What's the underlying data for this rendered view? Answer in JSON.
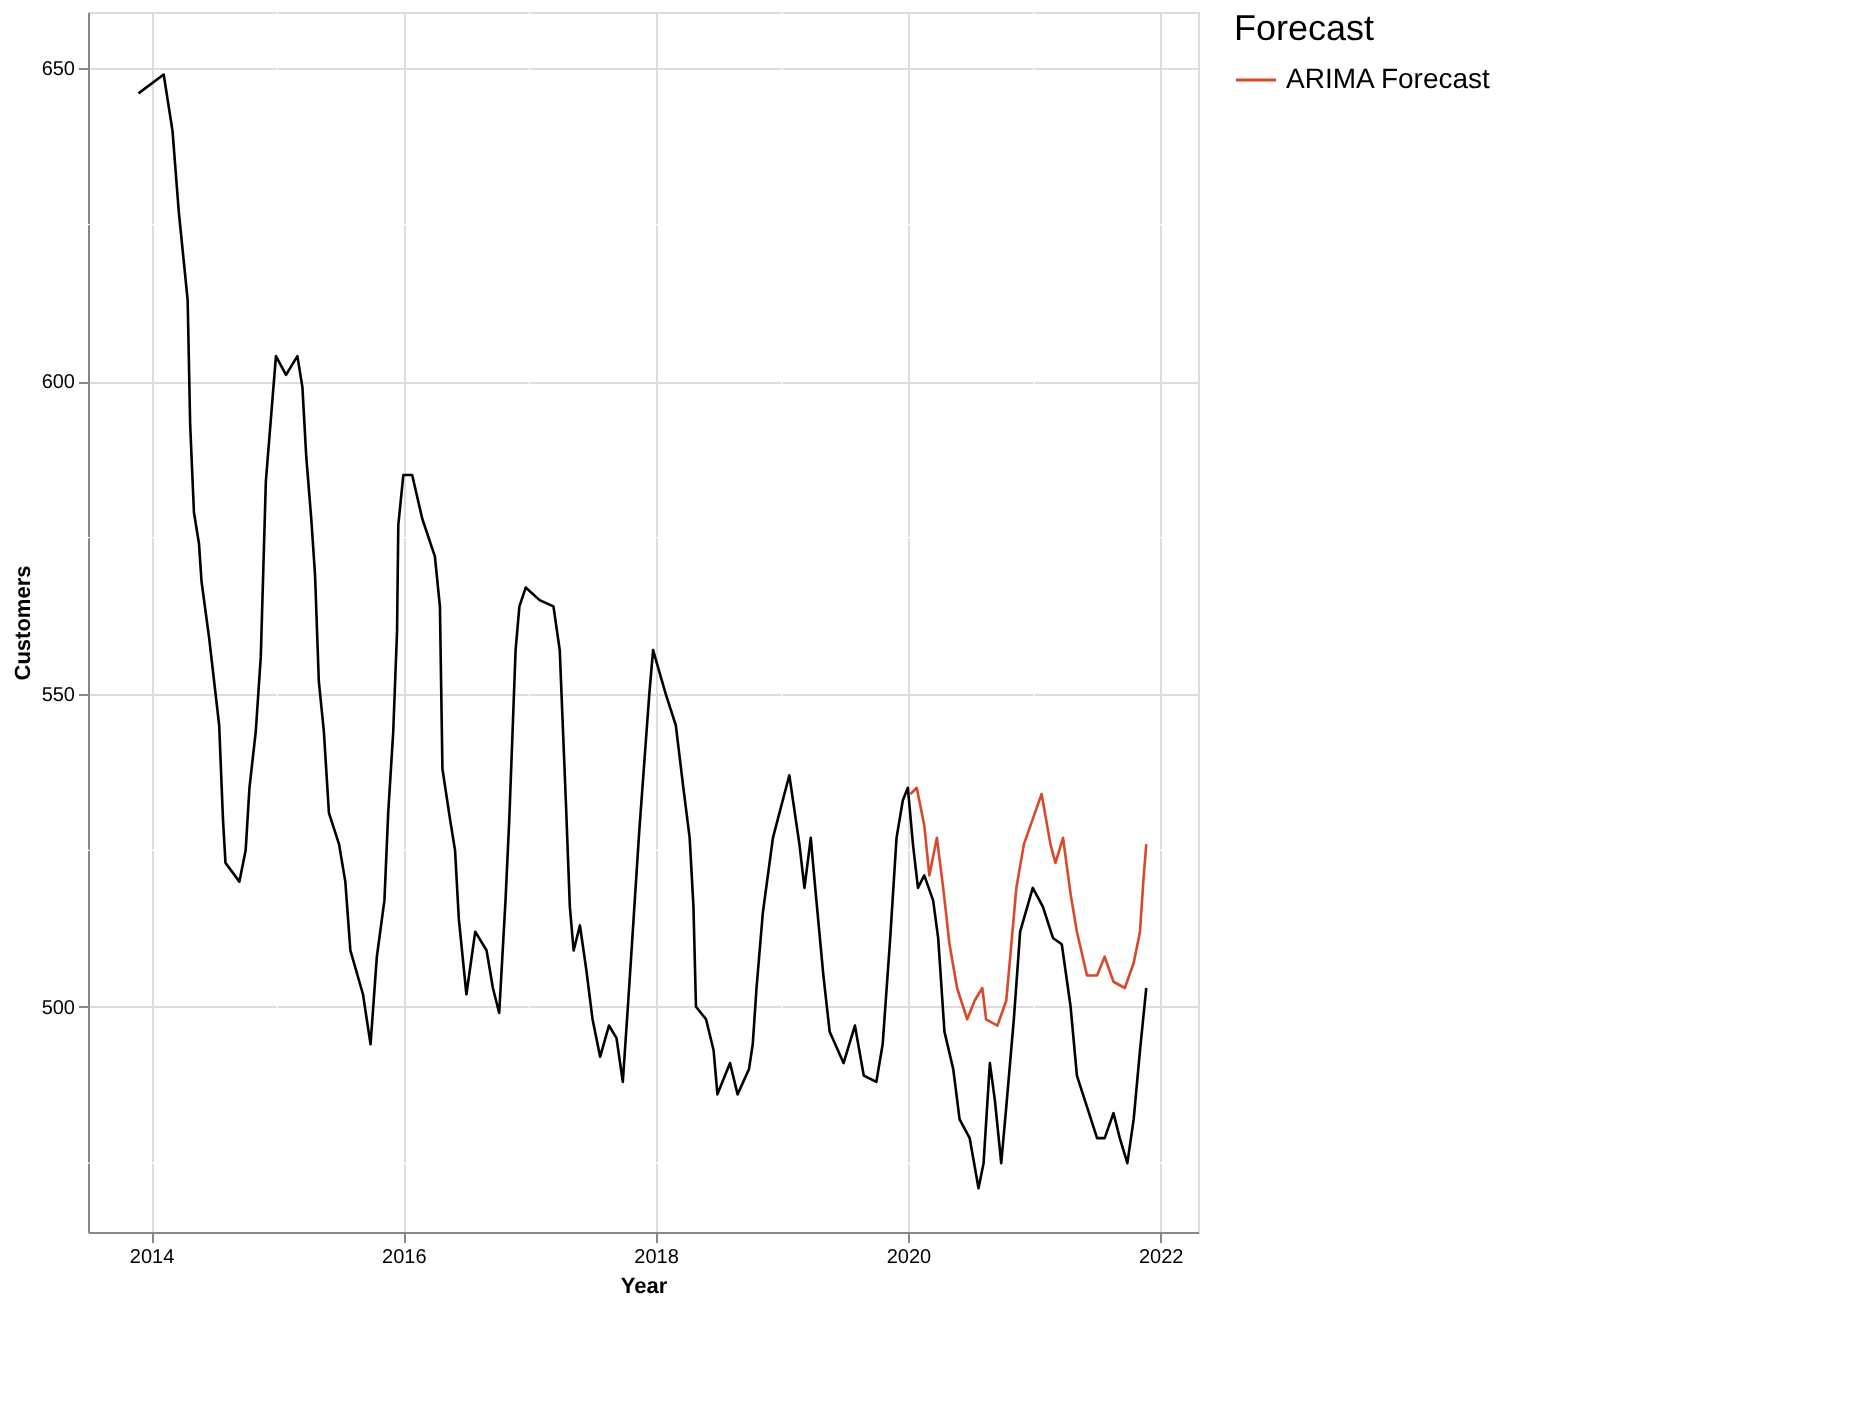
{
  "chart_data": {
    "type": "line",
    "xlabel": "Year",
    "ylabel": "Customers",
    "legend_title": "Forecast",
    "xlim": [
      2013.5,
      2022.3
    ],
    "ylim": [
      464,
      659
    ],
    "xticks": [
      2014,
      2016,
      2018,
      2020,
      2022
    ],
    "yticks": [
      500,
      550,
      600,
      650
    ],
    "grid": true,
    "legend": "right",
    "line_style": "solid",
    "marker": "none",
    "series": [
      {
        "color": "#000000",
        "x": [
          2013.9,
          2014.1,
          2014.17,
          2014.22,
          2014.29,
          2014.31,
          2014.34,
          2014.38,
          2014.4,
          2014.46,
          2014.54,
          2014.57,
          2014.59,
          2014.7,
          2014.75,
          2014.78,
          2014.83,
          2014.87,
          2014.89,
          2014.91,
          2014.95,
          2014.99,
          2015.07,
          2015.16,
          2015.2,
          2015.23,
          2015.27,
          2015.3,
          2015.33,
          2015.37,
          2015.41,
          2015.49,
          2015.54,
          2015.58,
          2015.68,
          2015.74,
          2015.79,
          2015.85,
          2015.88,
          2015.92,
          2015.95,
          2015.96,
          2016.0,
          2016.07,
          2016.15,
          2016.25,
          2016.29,
          2016.3,
          2016.31,
          2016.37,
          2016.41,
          2016.44,
          2016.5,
          2016.57,
          2016.66,
          2016.71,
          2016.76,
          2016.81,
          2016.84,
          2016.89,
          2016.92,
          2016.97,
          2017.08,
          2017.19,
          2017.24,
          2017.29,
          2017.32,
          2017.35,
          2017.4,
          2017.45,
          2017.5,
          2017.56,
          2017.63,
          2017.69,
          2017.74,
          2017.79,
          2017.87,
          2017.95,
          2017.98,
          2018.08,
          2018.16,
          2018.22,
          2018.27,
          2018.3,
          2018.32,
          2018.4,
          2018.46,
          2018.49,
          2018.59,
          2018.65,
          2018.74,
          2018.77,
          2018.8,
          2018.85,
          2018.93,
          2019.06,
          2019.14,
          2019.18,
          2019.23,
          2019.27,
          2019.33,
          2019.38,
          2019.49,
          2019.58,
          2019.65,
          2019.75,
          2019.8,
          2019.86,
          2019.91,
          2019.96,
          2020.0,
          2020.04,
          2020.08,
          2020.13,
          2020.2,
          2020.24,
          2020.29,
          2020.36,
          2020.41,
          2020.49,
          2020.56,
          2020.6,
          2020.65,
          2020.69,
          2020.74,
          2020.78,
          2020.84,
          2020.89,
          2020.99,
          2021.07,
          2021.15,
          2021.22,
          2021.29,
          2021.34,
          2021.42,
          2021.5,
          2021.56,
          2021.63,
          2021.68,
          2021.74,
          2021.79,
          2021.84,
          2021.89
        ],
        "values": [
          646,
          649,
          640,
          627,
          613,
          593,
          579,
          574,
          568,
          559,
          545,
          530,
          523,
          520,
          525,
          535,
          544,
          556,
          570,
          584,
          594,
          604,
          601,
          604,
          599,
          588,
          578,
          569,
          552,
          544,
          531,
          526,
          520,
          509,
          502,
          494,
          508,
          517,
          531,
          544,
          560,
          577,
          585,
          585,
          578,
          572,
          564,
          551,
          538,
          530,
          525,
          514,
          502,
          512,
          509,
          503,
          499,
          517,
          530,
          557,
          564,
          567,
          565,
          564,
          557,
          532,
          516,
          509,
          513,
          506,
          498,
          492,
          497,
          495,
          488,
          503,
          528,
          550,
          557,
          550,
          545,
          535,
          527,
          516,
          500,
          498,
          493,
          486,
          491,
          486,
          490,
          494,
          503,
          515,
          527,
          537,
          526,
          519,
          527,
          518,
          505,
          496,
          491,
          497,
          489,
          488,
          494,
          511,
          527,
          533,
          535,
          526,
          519,
          521,
          517,
          511,
          496,
          490,
          482,
          479,
          471,
          475,
          491,
          485,
          475,
          484,
          498,
          512,
          519,
          516,
          511,
          510,
          500,
          489,
          484,
          479,
          479,
          483,
          479,
          475,
          482,
          493,
          503
        ]
      },
      {
        "name": "ARIMA Forecast",
        "color": "#d7492a",
        "x": [
          2020.02,
          2020.07,
          2020.13,
          2020.17,
          2020.23,
          2020.28,
          2020.33,
          2020.39,
          2020.47,
          2020.53,
          2020.59,
          2020.62,
          2020.71,
          2020.78,
          2020.86,
          2020.92,
          2020.99,
          2021.06,
          2021.13,
          2021.17,
          2021.23,
          2021.29,
          2021.34,
          2021.42,
          2021.5,
          2021.56,
          2021.63,
          2021.72,
          2021.79,
          2021.84,
          2021.87,
          2021.89
        ],
        "values": [
          534,
          535,
          529,
          521,
          527,
          519,
          510,
          503,
          498,
          501,
          503,
          498,
          497,
          501,
          519,
          526,
          530,
          534,
          526,
          523,
          527,
          518,
          512,
          505,
          505,
          508,
          504,
          503,
          507,
          512,
          521,
          526
        ]
      }
    ]
  }
}
